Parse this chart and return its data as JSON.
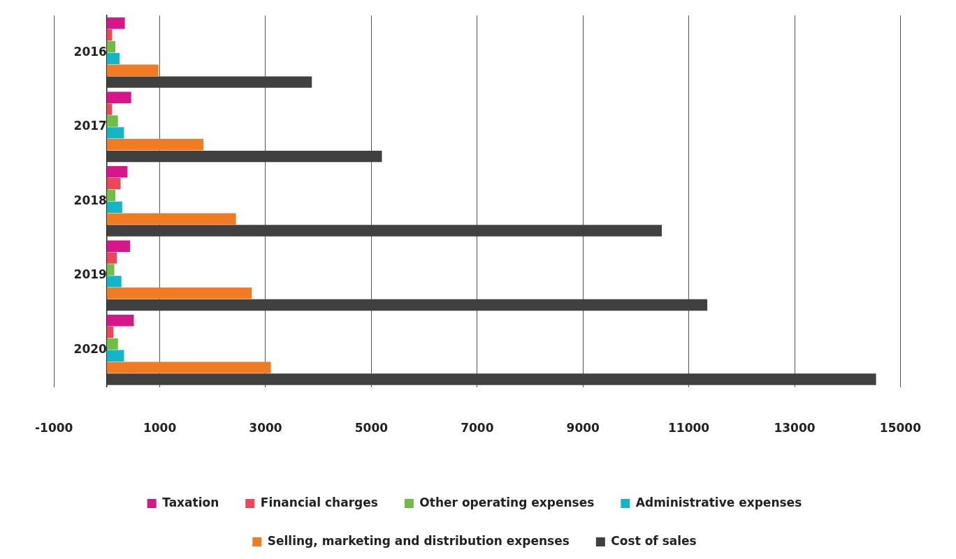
{
  "chart_data": {
    "type": "bar",
    "orientation": "horizontal",
    "categories": [
      "2016",
      "2017",
      "2018",
      "2019",
      "2020"
    ],
    "series": [
      {
        "name": "Taxation",
        "color": "#d6168b",
        "values": [
          340,
          460,
          390,
          440,
          510
        ]
      },
      {
        "name": "Financial charges",
        "color": "#ec4657",
        "values": [
          100,
          100,
          260,
          190,
          125
        ]
      },
      {
        "name": "Other operating expenses",
        "color": "#6cbe45",
        "values": [
          160,
          210,
          160,
          140,
          210
        ]
      },
      {
        "name": "Administrative expenses",
        "color": "#13b5c9",
        "values": [
          240,
          325,
          290,
          275,
          325
        ]
      },
      {
        "name": "Selling, marketing and distribution expenses",
        "color": "#f07b22",
        "values": [
          975,
          1825,
          2440,
          2740,
          3100
        ]
      },
      {
        "name": "Cost of sales",
        "color": "#404040",
        "values": [
          3875,
          5200,
          10490,
          11350,
          14540
        ]
      }
    ],
    "xlim": [
      -1000,
      15000
    ],
    "xticks": [
      -1000,
      1000,
      3000,
      5000,
      7000,
      9000,
      11000,
      13000,
      15000
    ],
    "grid": "x",
    "legend": "bottom"
  }
}
